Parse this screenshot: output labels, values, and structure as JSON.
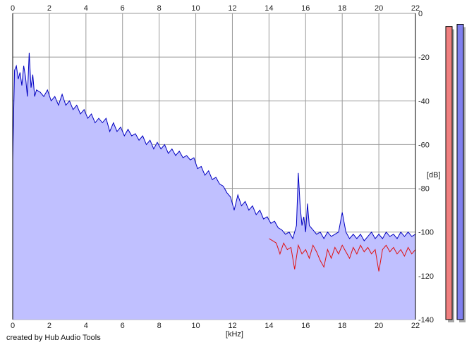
{
  "credit": "created by Hub Audio Tools",
  "colors": {
    "background": "#ffffff",
    "grid": "#9a9a9a",
    "fill": "#c0c0ff",
    "left_channel": "#e01010",
    "right_channel": "#0000c0",
    "meter_left": "#f08080",
    "meter_right": "#8080ee",
    "meter_shadow": "#a8a8a8"
  },
  "chart_data": {
    "type": "area",
    "title": "",
    "xlabel": "[kHz]",
    "ylabel": "[dB]",
    "x_ticks": [
      "0",
      "2",
      "4",
      "6",
      "8",
      "10",
      "12",
      "14",
      "16",
      "18",
      "20",
      "22"
    ],
    "y_ticks": [
      "0",
      "-20",
      "-40",
      "-60",
      "-80",
      "-100",
      "-120",
      "-140"
    ],
    "xlim": [
      0,
      22
    ],
    "ylim": [
      -140,
      0
    ],
    "grid": true,
    "series": [
      {
        "channel": "right",
        "color": "#0000c0",
        "points": [
          [
            0.0,
            -67
          ],
          [
            0.1,
            -26
          ],
          [
            0.2,
            -24
          ],
          [
            0.3,
            -30
          ],
          [
            0.4,
            -27
          ],
          [
            0.5,
            -33
          ],
          [
            0.6,
            -24
          ],
          [
            0.7,
            -29
          ],
          [
            0.8,
            -38
          ],
          [
            0.9,
            -18
          ],
          [
            1.0,
            -34
          ],
          [
            1.1,
            -28
          ],
          [
            1.2,
            -38
          ],
          [
            1.3,
            -35
          ],
          [
            1.5,
            -36
          ],
          [
            1.7,
            -38
          ],
          [
            1.9,
            -35
          ],
          [
            2.1,
            -40
          ],
          [
            2.3,
            -38
          ],
          [
            2.5,
            -42
          ],
          [
            2.7,
            -37
          ],
          [
            2.9,
            -42
          ],
          [
            3.1,
            -40
          ],
          [
            3.3,
            -44
          ],
          [
            3.5,
            -42
          ],
          [
            3.7,
            -46
          ],
          [
            3.9,
            -44
          ],
          [
            4.1,
            -48
          ],
          [
            4.3,
            -46
          ],
          [
            4.5,
            -50
          ],
          [
            4.7,
            -48
          ],
          [
            4.9,
            -50
          ],
          [
            5.1,
            -48
          ],
          [
            5.3,
            -54
          ],
          [
            5.5,
            -50
          ],
          [
            5.7,
            -54
          ],
          [
            5.9,
            -52
          ],
          [
            6.1,
            -56
          ],
          [
            6.3,
            -53
          ],
          [
            6.5,
            -56
          ],
          [
            6.7,
            -55
          ],
          [
            6.9,
            -58
          ],
          [
            7.1,
            -56
          ],
          [
            7.3,
            -60
          ],
          [
            7.5,
            -58
          ],
          [
            7.7,
            -62
          ],
          [
            7.9,
            -59
          ],
          [
            8.1,
            -62
          ],
          [
            8.3,
            -60
          ],
          [
            8.5,
            -64
          ],
          [
            8.7,
            -62
          ],
          [
            8.9,
            -65
          ],
          [
            9.1,
            -63
          ],
          [
            9.3,
            -66
          ],
          [
            9.5,
            -65
          ],
          [
            9.7,
            -67
          ],
          [
            9.9,
            -66
          ],
          [
            10.1,
            -71
          ],
          [
            10.3,
            -70
          ],
          [
            10.5,
            -74
          ],
          [
            10.7,
            -72
          ],
          [
            10.9,
            -76
          ],
          [
            11.1,
            -75
          ],
          [
            11.3,
            -78
          ],
          [
            11.5,
            -79
          ],
          [
            11.7,
            -82
          ],
          [
            11.9,
            -84
          ],
          [
            12.1,
            -90
          ],
          [
            12.3,
            -83
          ],
          [
            12.5,
            -88
          ],
          [
            12.7,
            -86
          ],
          [
            12.9,
            -90
          ],
          [
            13.1,
            -88
          ],
          [
            13.3,
            -92
          ],
          [
            13.5,
            -90
          ],
          [
            13.7,
            -94
          ],
          [
            13.9,
            -93
          ],
          [
            14.1,
            -96
          ],
          [
            14.3,
            -95
          ],
          [
            14.5,
            -98
          ],
          [
            14.7,
            -99
          ],
          [
            14.9,
            -101
          ],
          [
            15.1,
            -100
          ],
          [
            15.3,
            -103
          ],
          [
            15.5,
            -97
          ],
          [
            15.6,
            -73
          ],
          [
            15.7,
            -88
          ],
          [
            15.8,
            -97
          ],
          [
            15.9,
            -93
          ],
          [
            16.0,
            -100
          ],
          [
            16.1,
            -87
          ],
          [
            16.2,
            -97
          ],
          [
            16.4,
            -99
          ],
          [
            16.6,
            -101
          ],
          [
            16.8,
            -100
          ],
          [
            17.0,
            -103
          ],
          [
            17.2,
            -100
          ],
          [
            17.4,
            -102
          ],
          [
            17.6,
            -101
          ],
          [
            17.8,
            -100
          ],
          [
            18.0,
            -91
          ],
          [
            18.2,
            -100
          ],
          [
            18.4,
            -103
          ],
          [
            18.6,
            -101
          ],
          [
            18.8,
            -103
          ],
          [
            19.0,
            -101
          ],
          [
            19.2,
            -104
          ],
          [
            19.4,
            -102
          ],
          [
            19.6,
            -100
          ],
          [
            19.8,
            -103
          ],
          [
            20.0,
            -101
          ],
          [
            20.2,
            -103
          ],
          [
            20.4,
            -100
          ],
          [
            20.6,
            -102
          ],
          [
            20.8,
            -101
          ],
          [
            21.0,
            -103
          ],
          [
            21.2,
            -100
          ],
          [
            21.4,
            -102
          ],
          [
            21.6,
            -100
          ],
          [
            21.8,
            -102
          ],
          [
            22.0,
            -101
          ]
        ]
      },
      {
        "channel": "left",
        "color": "#e01010",
        "points": [
          [
            14.0,
            -103
          ],
          [
            14.2,
            -104
          ],
          [
            14.4,
            -105
          ],
          [
            14.6,
            -110
          ],
          [
            14.8,
            -105
          ],
          [
            15.0,
            -108
          ],
          [
            15.2,
            -107
          ],
          [
            15.4,
            -117
          ],
          [
            15.6,
            -106
          ],
          [
            15.8,
            -110
          ],
          [
            16.0,
            -108
          ],
          [
            16.2,
            -112
          ],
          [
            16.4,
            -106
          ],
          [
            16.6,
            -109
          ],
          [
            16.8,
            -113
          ],
          [
            17.0,
            -116
          ],
          [
            17.2,
            -108
          ],
          [
            17.4,
            -112
          ],
          [
            17.6,
            -107
          ],
          [
            17.8,
            -110
          ],
          [
            18.0,
            -106
          ],
          [
            18.2,
            -109
          ],
          [
            18.4,
            -112
          ],
          [
            18.6,
            -107
          ],
          [
            18.8,
            -110
          ],
          [
            19.0,
            -106
          ],
          [
            19.2,
            -109
          ],
          [
            19.4,
            -107
          ],
          [
            19.6,
            -110
          ],
          [
            19.8,
            -108
          ],
          [
            20.0,
            -118
          ],
          [
            20.2,
            -108
          ],
          [
            20.4,
            -106
          ],
          [
            20.6,
            -109
          ],
          [
            20.8,
            -107
          ],
          [
            21.0,
            -110
          ],
          [
            21.2,
            -108
          ],
          [
            21.4,
            -111
          ],
          [
            21.6,
            -107
          ],
          [
            21.8,
            -110
          ],
          [
            22.0,
            -108
          ]
        ]
      }
    ],
    "level_meters": [
      {
        "channel": "left",
        "color": "#f08080",
        "level_db": -6
      },
      {
        "channel": "right",
        "color": "#8080ee",
        "level_db": -5
      }
    ]
  }
}
